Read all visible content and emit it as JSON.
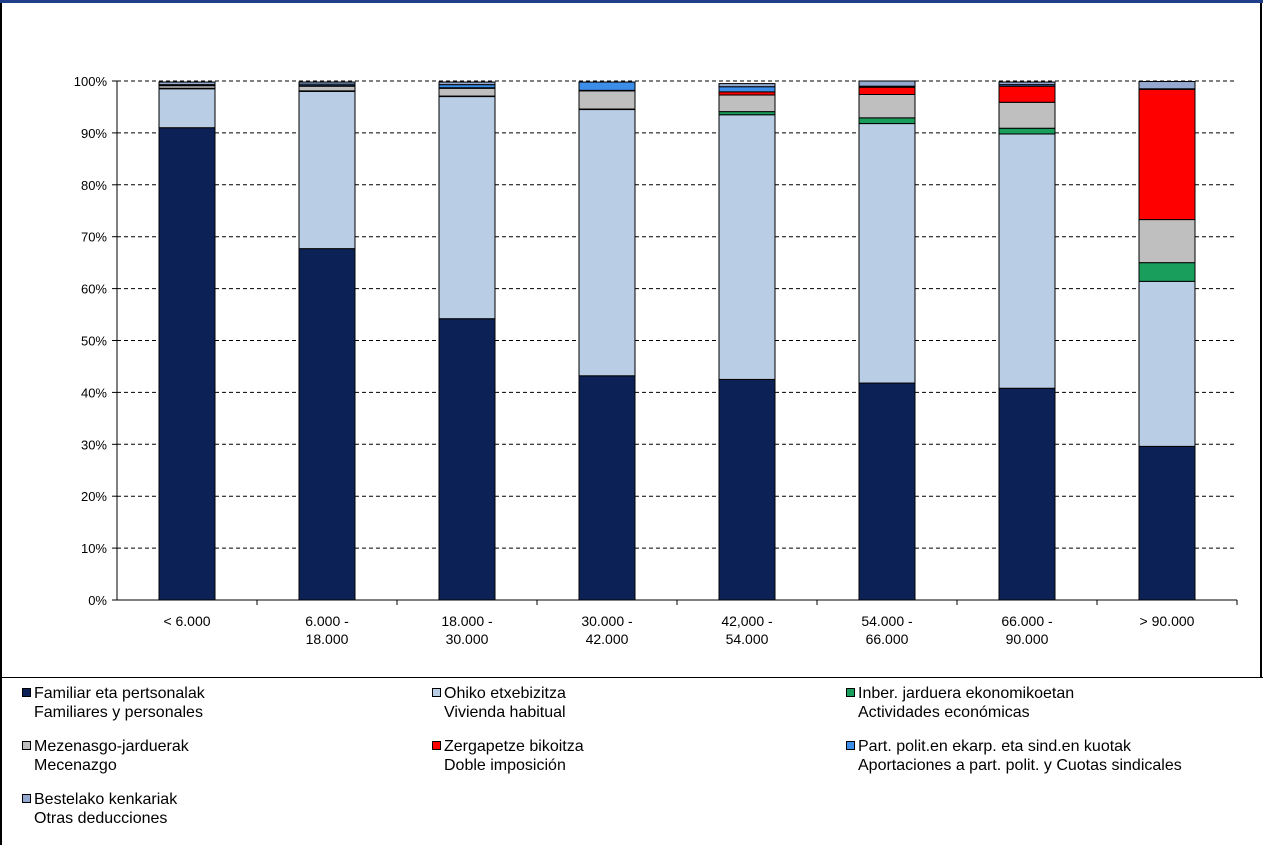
{
  "chart_data": {
    "type": "bar",
    "stacked": true,
    "categories": [
      [
        "< 6.000"
      ],
      [
        "6.000 -",
        "18.000"
      ],
      [
        "18.000 -",
        "30.000"
      ],
      [
        "30.000 -",
        "42.000"
      ],
      [
        "42,000 -",
        "54.000"
      ],
      [
        "54.000 -",
        "66.000"
      ],
      [
        "66.000 -",
        "90.000"
      ],
      [
        "> 90.000"
      ]
    ],
    "ylim": [
      0,
      100
    ],
    "yticks": [
      "0%",
      "10%",
      "20%",
      "30%",
      "40%",
      "50%",
      "60%",
      "70%",
      "80%",
      "90%",
      "100%"
    ],
    "grid": "dashed horizontal",
    "legend_position": "bottom",
    "series": [
      {
        "name": "Familiar eta pertsonalak",
        "name2": "Familiares y personales",
        "color": "#0c2257",
        "values": [
          91.0,
          67.7,
          54.2,
          43.2,
          42.5,
          41.8,
          40.8,
          29.6
        ]
      },
      {
        "name": "Ohiko etxebizitza",
        "name2": "Vivienda habitual",
        "color": "#b9cde5",
        "values": [
          7.5,
          30.3,
          42.8,
          51.3,
          51.0,
          50.0,
          49.0,
          31.8
        ]
      },
      {
        "name": "Inber. jarduera ekonomikoetan",
        "name2": "Actividades económicas",
        "color": "#1a9e5c",
        "values": [
          0.1,
          0.1,
          0.1,
          0.1,
          0.6,
          1.1,
          1.1,
          3.6
        ]
      },
      {
        "name": "Mezenasgo-jarduerak",
        "name2": "Mecenazgo",
        "color": "#bfbfbf",
        "values": [
          0.5,
          0.9,
          1.5,
          3.5,
          3.2,
          4.5,
          5.0,
          8.3
        ]
      },
      {
        "name": "Zergapetze bikoitza",
        "name2": "Doble imposición",
        "color": "#ff0000",
        "values": [
          0.0,
          0.1,
          0.1,
          0.1,
          0.6,
          1.4,
          3.1,
          25.1
        ]
      },
      {
        "name": "Part. polit.en ekarp. eta sind.en kuotak",
        "name2": "Aportaciones a part. polit. y Cuotas sindicales",
        "color": "#3d8ee8",
        "values": [
          0.2,
          0.3,
          0.6,
          1.6,
          1.0,
          0.2,
          0.3,
          0.1
        ]
      },
      {
        "name": "Bestelako kenkariak",
        "name2": "Otras deducciones",
        "color": "#95a9d0",
        "values": [
          0.5,
          0.4,
          0.5,
          0.0,
          0.6,
          1.0,
          0.5,
          1.4
        ]
      }
    ]
  }
}
